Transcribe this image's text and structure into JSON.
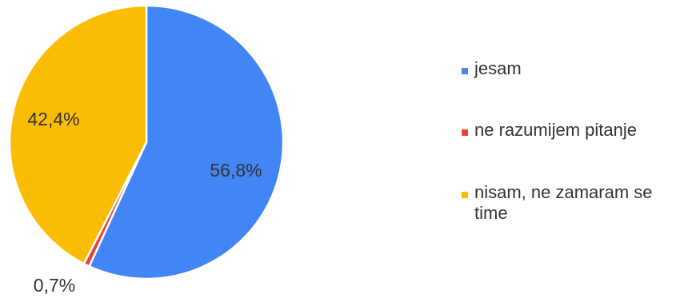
{
  "chart_data": {
    "type": "pie",
    "title": "",
    "slices": [
      {
        "label": "jesam",
        "value": 56.8,
        "value_label": "56,8%",
        "color": "#4285F4"
      },
      {
        "label": "ne razumijem pitanje",
        "value": 0.7,
        "value_label": "0,7%",
        "color": "#EA4335"
      },
      {
        "label": "nisam, ne zamaram se time",
        "value": 42.4,
        "value_label": "42,4%",
        "color": "#FBBC04"
      }
    ],
    "start": "top",
    "direction": "clockwise",
    "legend_position": "right"
  }
}
